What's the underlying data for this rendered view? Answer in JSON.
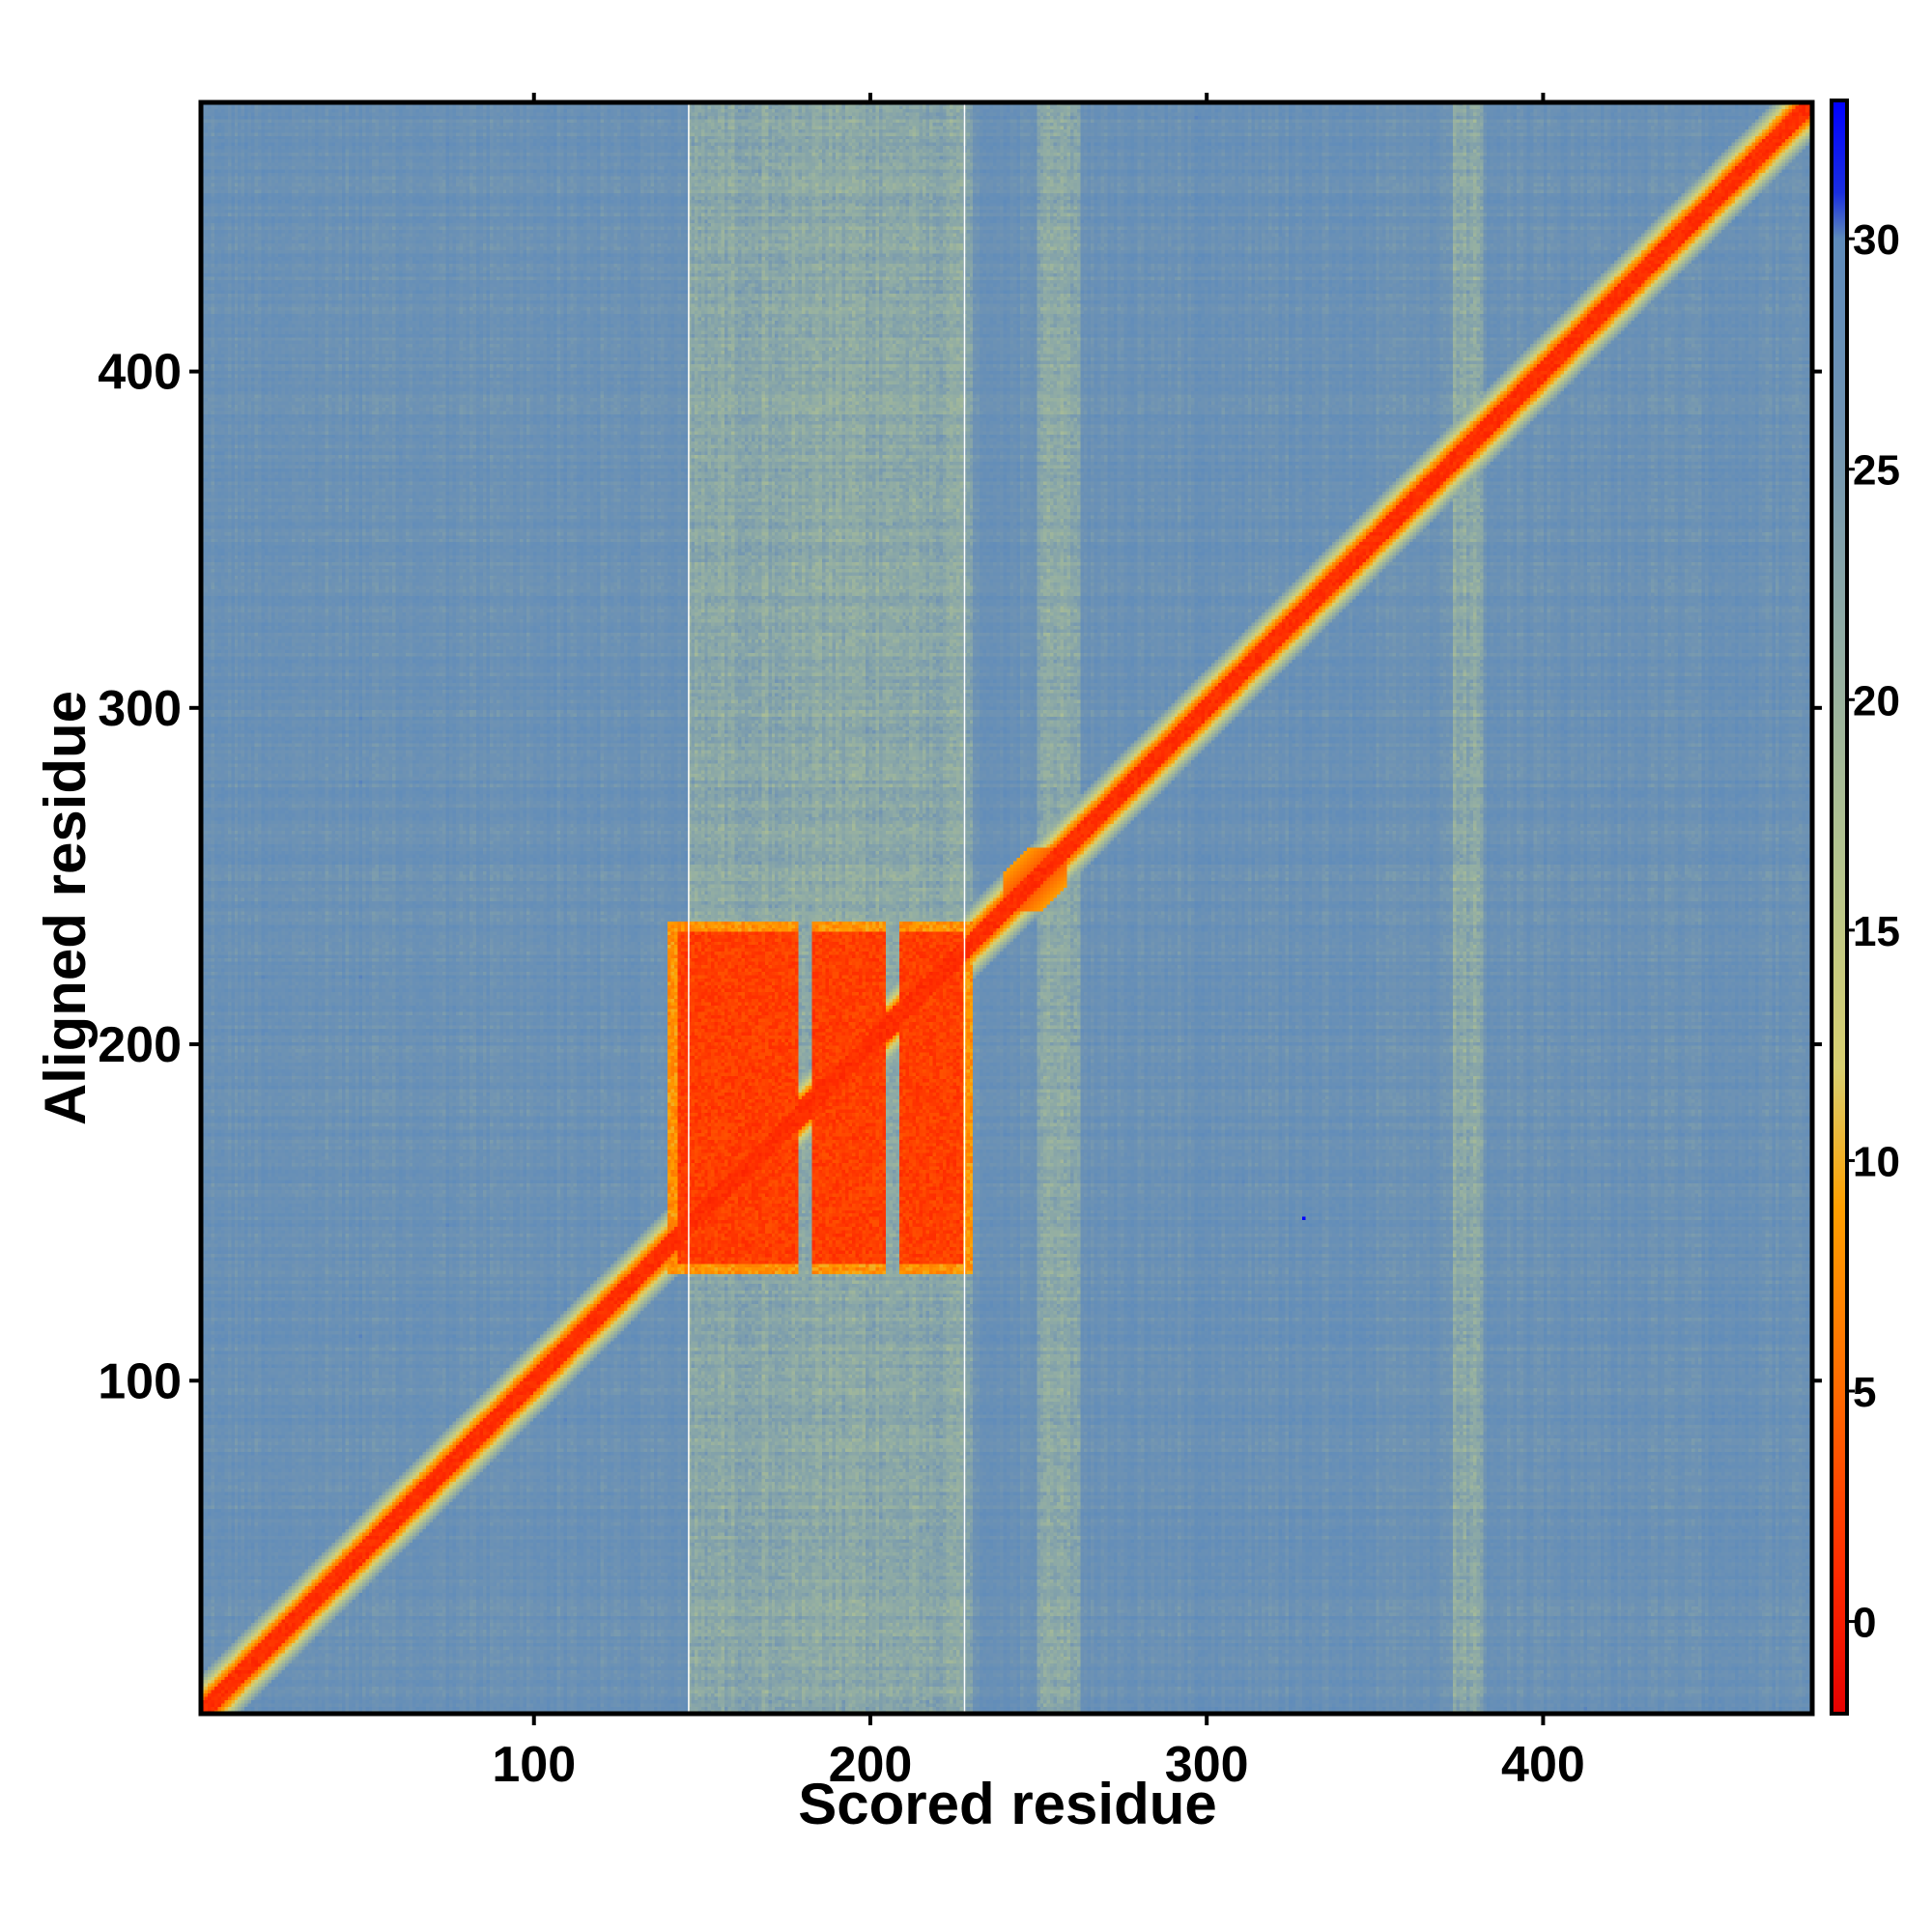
{
  "chart_data": {
    "type": "heatmap",
    "title": "",
    "xlabel": "Scored residue",
    "ylabel": "Aligned residue",
    "xlim": [
      1,
      480
    ],
    "ylim": [
      1,
      480
    ],
    "x_ticks": [
      100,
      200,
      300,
      400
    ],
    "y_ticks": [
      100,
      200,
      300,
      400
    ],
    "colorbar": {
      "range": [
        -2,
        33
      ],
      "ticks": [
        0,
        5,
        10,
        15,
        20,
        25,
        30
      ],
      "stops": [
        {
          "value": -2,
          "color": "#e60000"
        },
        {
          "value": 1,
          "color": "#ff2a00"
        },
        {
          "value": 5,
          "color": "#ff6a00"
        },
        {
          "value": 9,
          "color": "#ffa000"
        },
        {
          "value": 12,
          "color": "#d8cf70"
        },
        {
          "value": 16,
          "color": "#b8c68c"
        },
        {
          "value": 21,
          "color": "#93aea3"
        },
        {
          "value": 26,
          "color": "#6f93b3"
        },
        {
          "value": 30,
          "color": "#5e8bbb"
        },
        {
          "value": 31,
          "color": "#1a2ee0"
        },
        {
          "value": 33,
          "color": "#0000ff"
        }
      ]
    },
    "pattern": {
      "background_value": 27,
      "diagonal": {
        "core_value": 0.5,
        "halfwidth_core": 3,
        "halfwidth_edge": 7
      },
      "block": {
        "x_range": [
          140,
          230
        ],
        "y_range": [
          132,
          236
        ],
        "value": 1
      },
      "block_gaps_x": [
        [
          179,
          182
        ],
        [
          205,
          208
        ]
      ],
      "diagonal_bulge": {
        "x_range": [
          240,
          258
        ],
        "y_range": [
          240,
          258
        ]
      },
      "light_bands_x": [
        [
          146,
          230
        ],
        [
          250,
          262
        ],
        [
          374,
          382
        ]
      ],
      "white_lines_x": [
        146,
        228
      ],
      "outlier_point": {
        "x": 329,
        "y": 148,
        "value": 33
      }
    }
  }
}
